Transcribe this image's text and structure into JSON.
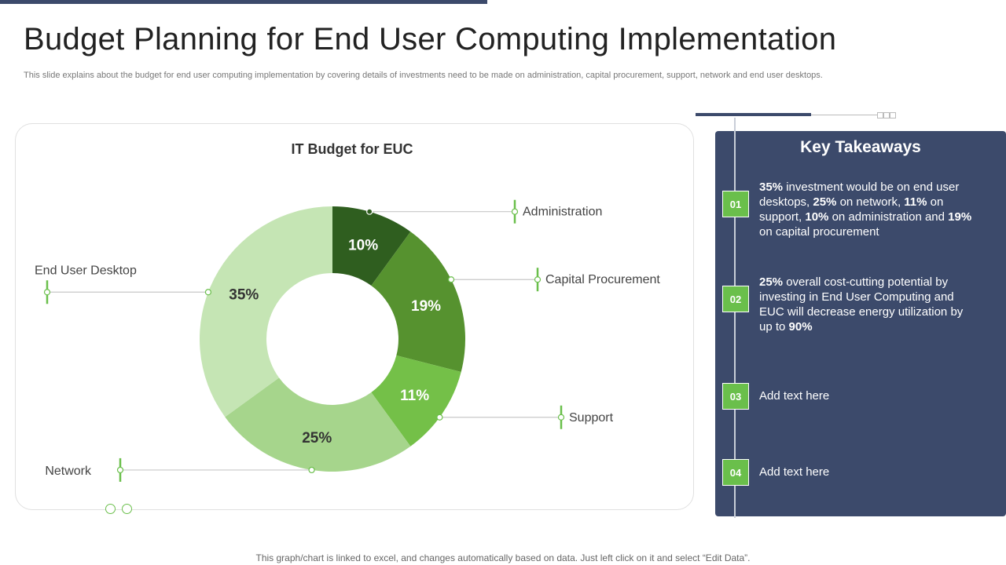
{
  "page": {
    "title": "Budget Planning for End User Computing Implementation",
    "subtitle": "This slide explains about the budget for end user computing implementation by covering details of investments need to be made on administration, capital procurement, support, network and end user desktops.",
    "footer": "This graph/chart is linked to excel,  and changes automatically based on data. Just left click on it and select “Edit Data”."
  },
  "colors": {
    "accent_green": "#6abf4b",
    "panel_navy": "#3c4a6b"
  },
  "chart_data": {
    "type": "pie",
    "title": "IT Budget for EUC",
    "donut": true,
    "categories": [
      "Administration",
      "Capital Procurement",
      "Support",
      "Network",
      "End User Desktop"
    ],
    "values": [
      10,
      19,
      11,
      25,
      35
    ],
    "labels": [
      "10%",
      "19%",
      "11%",
      "25%",
      "35%"
    ],
    "colors": [
      "#2f5e1f",
      "#56922f",
      "#74c048",
      "#a6d58c",
      "#c5e5b4"
    ],
    "label_colors": [
      "#ffffff",
      "#ffffff",
      "#ffffff",
      "#333333",
      "#333333"
    ]
  },
  "takeaways": {
    "title": "Key Takeaways",
    "items": [
      {
        "num": "01",
        "segments": [
          {
            "t": "35%",
            "b": true
          },
          {
            "t": " investment would be on end user desktops, "
          },
          {
            "t": "25%",
            "b": true
          },
          {
            "t": " on network, "
          },
          {
            "t": "11%",
            "b": true
          },
          {
            "t": " on support, "
          },
          {
            "t": "10%",
            "b": true
          },
          {
            "t": " on administration and "
          },
          {
            "t": "19%",
            "b": true
          },
          {
            "t": " on capital procurement"
          }
        ]
      },
      {
        "num": "02",
        "segments": [
          {
            "t": "25%",
            "b": true
          },
          {
            "t": " overall cost-cutting potential by investing in End User Computing and EUC will decrease energy utilization by up to "
          },
          {
            "t": "90%",
            "b": true
          }
        ]
      },
      {
        "num": "03",
        "segments": [
          {
            "t": "Add text here"
          }
        ]
      },
      {
        "num": "04",
        "segments": [
          {
            "t": "Add text here"
          }
        ]
      }
    ]
  }
}
